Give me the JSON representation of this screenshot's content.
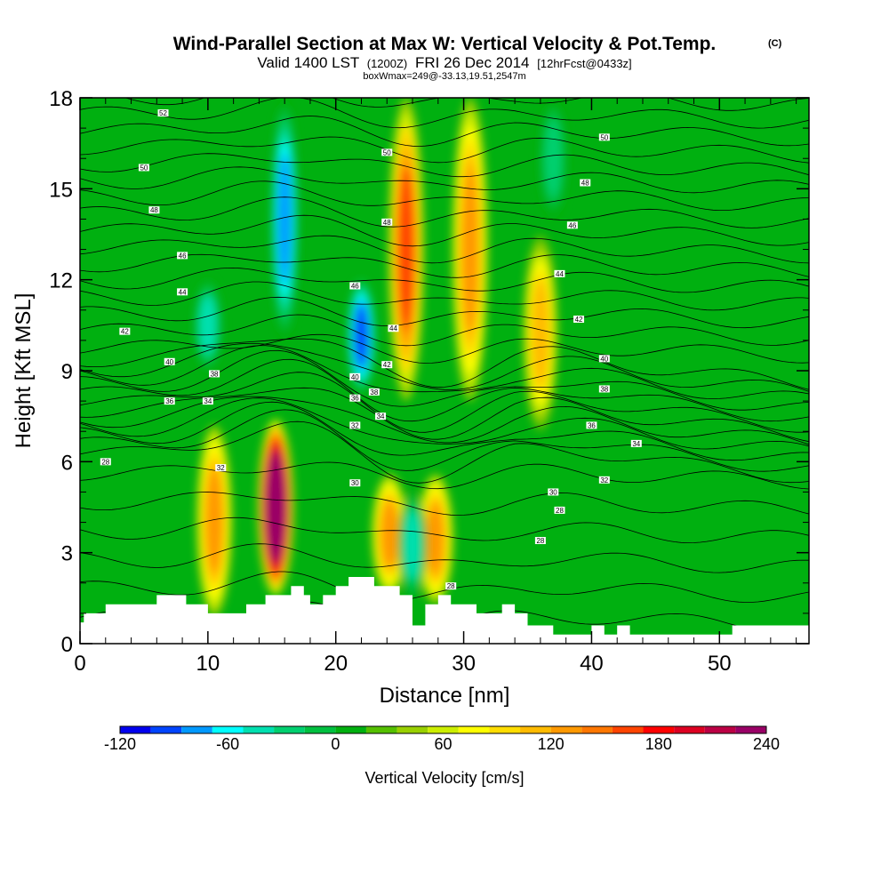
{
  "title": {
    "main": "Wind-Parallel Section at Max W: Vertical Velocity & Pot.Temp.",
    "mark": "(C)",
    "line2_a": "Valid 1400 LST",
    "line2_b": "(1200Z)",
    "line2_c": "FRI 26 Dec 2014",
    "line2_d": "[12hrFcst@0433z]",
    "line3": "boxWmax=249@-33.13,19.51,2547m"
  },
  "chart_data": {
    "type": "heatmap",
    "xlabel": "Distance [nm]",
    "ylabel": "Height [Kft MSL]",
    "xlim": [
      0,
      57
    ],
    "ylim": [
      0,
      18
    ],
    "x_ticks": [
      0,
      10,
      20,
      30,
      40,
      50
    ],
    "y_ticks": [
      0,
      3,
      6,
      9,
      12,
      15,
      18
    ],
    "colorbar": {
      "label": "Vertical Velocity [cm/s]",
      "levels": [
        -120,
        -105,
        -90,
        -75,
        -60,
        -45,
        -30,
        -15,
        0,
        15,
        30,
        45,
        60,
        75,
        90,
        105,
        120,
        135,
        150,
        165,
        180,
        195,
        210,
        225,
        240
      ],
      "tick_labels": [
        "-120",
        "-60",
        "0",
        "60",
        "120",
        "180",
        "240"
      ],
      "tick_values": [
        -120,
        -60,
        0,
        60,
        120,
        180,
        240
      ],
      "colors": [
        "#0000ee",
        "#0044ff",
        "#0099ff",
        "#00ffff",
        "#00e0b0",
        "#00d070",
        "#00c040",
        "#00b010",
        "#55c000",
        "#99d000",
        "#ccee00",
        "#ffff00",
        "#ffdd00",
        "#ffbb00",
        "#ff9900",
        "#ff7700",
        "#ff4400",
        "#ff0000",
        "#dd0022",
        "#bb0044",
        "#990066"
      ]
    },
    "vertical_velocity_features": [
      {
        "x": 10.5,
        "y_from": 0.9,
        "y_to": 7.2,
        "peak": 100
      },
      {
        "x": 15.3,
        "y_from": 1.6,
        "y_to": 7.4,
        "peak": 240
      },
      {
        "x": 24.2,
        "y_from": 1.6,
        "y_to": 5.6,
        "peak": 90
      },
      {
        "x": 27.8,
        "y_from": 1.3,
        "y_to": 5.6,
        "peak": 90
      },
      {
        "x": 25.5,
        "y_from": 8.0,
        "y_to": 18.0,
        "peak": 120
      },
      {
        "x": 30.5,
        "y_from": 8.0,
        "y_to": 18.0,
        "peak": 90
      },
      {
        "x": 36.0,
        "y_from": 7.0,
        "y_to": 13.5,
        "peak": 75
      },
      {
        "x": 16.0,
        "y_from": 10.0,
        "y_to": 18.0,
        "peak": -90
      },
      {
        "x": 22.0,
        "y_from": 8.3,
        "y_to": 12.0,
        "peak": -105
      },
      {
        "x": 26.0,
        "y_from": 1.5,
        "y_to": 5.0,
        "peak": -60
      },
      {
        "x": 10.0,
        "y_from": 9.0,
        "y_to": 12.0,
        "peak": -60
      },
      {
        "x": 37.0,
        "y_from": 14.0,
        "y_to": 18.0,
        "peak": -45
      }
    ],
    "terrain_height": [
      [
        0,
        0.7
      ],
      [
        0.3,
        1.0
      ],
      [
        2,
        1.3
      ],
      [
        6,
        1.6
      ],
      [
        8,
        1.6
      ],
      [
        8.3,
        1.3
      ],
      [
        10,
        1.0
      ],
      [
        11,
        1.0
      ],
      [
        13,
        1.3
      ],
      [
        14.5,
        1.6
      ],
      [
        16,
        1.6
      ],
      [
        16.5,
        1.9
      ],
      [
        17.5,
        1.6
      ],
      [
        18,
        1.3
      ],
      [
        19,
        1.6
      ],
      [
        20,
        1.9
      ],
      [
        21,
        2.2
      ],
      [
        22,
        2.2
      ],
      [
        23,
        1.9
      ],
      [
        24,
        1.9
      ],
      [
        25,
        1.6
      ],
      [
        26,
        0.6
      ],
      [
        27,
        1.3
      ],
      [
        28,
        1.6
      ],
      [
        29,
        1.3
      ],
      [
        30,
        1.3
      ],
      [
        31,
        1.0
      ],
      [
        33,
        1.3
      ],
      [
        34,
        1.0
      ],
      [
        35,
        0.6
      ],
      [
        37,
        0.3
      ],
      [
        40,
        0.6
      ],
      [
        41,
        0.3
      ],
      [
        42,
        0.6
      ],
      [
        43,
        0.3
      ],
      [
        50,
        0.3
      ],
      [
        51,
        0.6
      ],
      [
        57,
        0.6
      ]
    ],
    "theta_contour_labels": [
      {
        "text": "52",
        "x": 6.5,
        "y": 17.5
      },
      {
        "text": "50",
        "x": 5.0,
        "y": 15.7
      },
      {
        "text": "48",
        "x": 5.8,
        "y": 14.3
      },
      {
        "text": "46",
        "x": 8.0,
        "y": 12.8
      },
      {
        "text": "44",
        "x": 8.0,
        "y": 11.6
      },
      {
        "text": "42",
        "x": 3.5,
        "y": 10.3
      },
      {
        "text": "40",
        "x": 7.0,
        "y": 9.3
      },
      {
        "text": "38",
        "x": 10.5,
        "y": 8.9
      },
      {
        "text": "36",
        "x": 7.0,
        "y": 8.0
      },
      {
        "text": "34",
        "x": 10.0,
        "y": 8.0
      },
      {
        "text": "32",
        "x": 11.0,
        "y": 5.8
      },
      {
        "text": "28",
        "x": 2.0,
        "y": 6.0
      },
      {
        "text": "50",
        "x": 24.0,
        "y": 16.2
      },
      {
        "text": "48",
        "x": 24.0,
        "y": 13.9
      },
      {
        "text": "46",
        "x": 21.5,
        "y": 11.8
      },
      {
        "text": "44",
        "x": 24.5,
        "y": 10.4
      },
      {
        "text": "42",
        "x": 24.0,
        "y": 9.2
      },
      {
        "text": "40",
        "x": 21.5,
        "y": 8.8
      },
      {
        "text": "38",
        "x": 23.0,
        "y": 8.3
      },
      {
        "text": "36",
        "x": 21.5,
        "y": 8.1
      },
      {
        "text": "34",
        "x": 23.5,
        "y": 7.5
      },
      {
        "text": "32",
        "x": 21.5,
        "y": 7.2
      },
      {
        "text": "30",
        "x": 21.5,
        "y": 5.3
      },
      {
        "text": "28",
        "x": 29.0,
        "y": 1.9
      },
      {
        "text": "50",
        "x": 41.0,
        "y": 16.7
      },
      {
        "text": "48",
        "x": 39.5,
        "y": 15.2
      },
      {
        "text": "46",
        "x": 38.5,
        "y": 13.8
      },
      {
        "text": "44",
        "x": 37.5,
        "y": 12.2
      },
      {
        "text": "42",
        "x": 39.0,
        "y": 10.7
      },
      {
        "text": "40",
        "x": 41.0,
        "y": 9.4
      },
      {
        "text": "38",
        "x": 41.0,
        "y": 8.4
      },
      {
        "text": "36",
        "x": 40.0,
        "y": 7.2
      },
      {
        "text": "34",
        "x": 43.5,
        "y": 6.6
      },
      {
        "text": "32",
        "x": 41.0,
        "y": 5.4
      },
      {
        "text": "30",
        "x": 37.0,
        "y": 5.0
      },
      {
        "text": "28",
        "x": 37.5,
        "y": 4.4
      },
      {
        "text": "28",
        "x": 36.0,
        "y": 3.4
      }
    ]
  }
}
